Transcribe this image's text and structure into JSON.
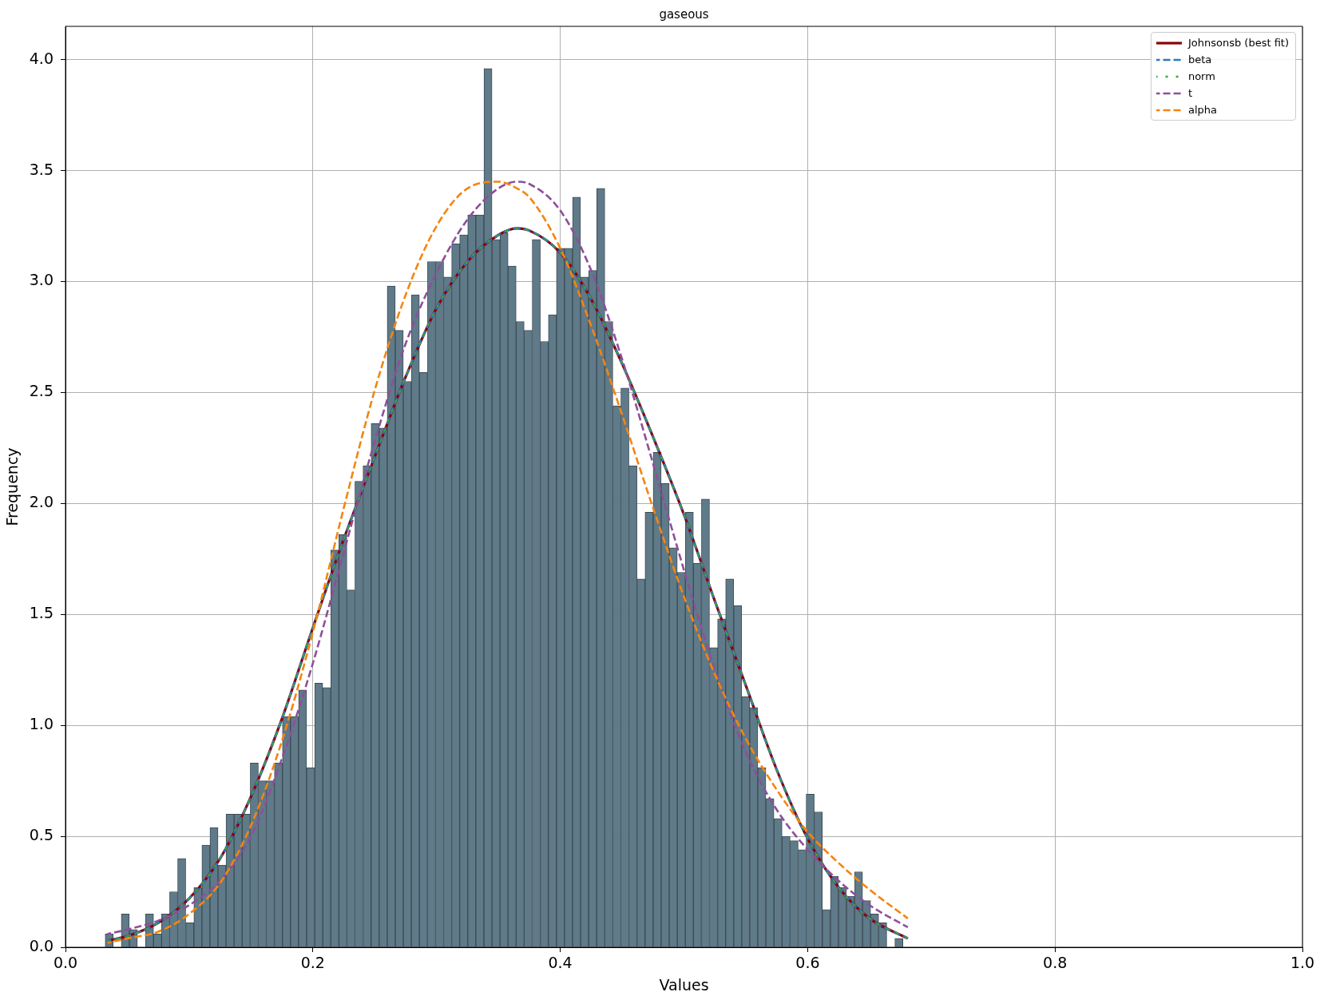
{
  "chart_data": {
    "type": "histogram",
    "title": "gaseous",
    "xlabel": "Values",
    "ylabel": "Frequency",
    "bins": [
      0.0321,
      0.0386,
      0.0451,
      0.0516,
      0.0582,
      0.0647,
      0.0712,
      0.0777,
      0.0842,
      0.0907,
      0.0972,
      0.1038,
      0.1103,
      0.1168,
      0.1233,
      0.1298,
      0.1363,
      0.1428,
      0.1494,
      0.1559,
      0.1624,
      0.1689,
      0.1754,
      0.1819,
      0.1884,
      0.195,
      0.2015,
      0.208,
      0.2145,
      0.221,
      0.2275,
      0.234,
      0.2405,
      0.2471,
      0.2536,
      0.2601,
      0.2666,
      0.2731,
      0.2796,
      0.2861,
      0.2927,
      0.2992,
      0.3057,
      0.3122,
      0.3187,
      0.3252,
      0.3317,
      0.3383,
      0.3448,
      0.3513,
      0.3578,
      0.3643,
      0.3708,
      0.3773,
      0.3839,
      0.3904,
      0.3969,
      0.4034,
      0.4099,
      0.4164,
      0.4229,
      0.4295,
      0.436,
      0.4425,
      0.449,
      0.4555,
      0.462,
      0.4685,
      0.4751,
      0.4816,
      0.4881,
      0.4946,
      0.5011,
      0.5076,
      0.5141,
      0.5207,
      0.5272,
      0.5337,
      0.5402,
      0.5467,
      0.5532,
      0.5597,
      0.5662,
      0.5728,
      0.5793,
      0.5858,
      0.5923,
      0.5988,
      0.6053,
      0.6118,
      0.6184,
      0.6249,
      0.6314,
      0.6379,
      0.6444,
      0.6509,
      0.6574,
      0.664,
      0.6705,
      0.677
    ],
    "values": [
      0.06,
      0,
      0.15,
      0.08,
      0,
      0.15,
      0.06,
      0.15,
      0.25,
      0.4,
      0.11,
      0.27,
      0.46,
      0.54,
      0.37,
      0.6,
      0.6,
      0.6,
      0.83,
      0.75,
      0.75,
      0.83,
      1.04,
      1.04,
      1.16,
      0.81,
      1.19,
      1.17,
      1.79,
      1.86,
      1.61,
      2.1,
      2.17,
      2.36,
      2.34,
      2.98,
      2.78,
      2.55,
      2.94,
      2.59,
      3.09,
      3.09,
      3.02,
      3.17,
      3.21,
      3.3,
      3.3,
      3.96,
      3.19,
      3.22,
      3.07,
      2.82,
      2.78,
      3.19,
      2.73,
      2.85,
      3.15,
      3.15,
      3.38,
      3.02,
      3.05,
      3.42,
      2.82,
      2.44,
      2.52,
      2.17,
      1.66,
      1.96,
      2.23,
      2.09,
      1.8,
      1.69,
      1.96,
      1.73,
      2.02,
      1.35,
      1.48,
      1.66,
      1.54,
      1.13,
      1.08,
      0.81,
      0.67,
      0.58,
      0.5,
      0.48,
      0.44,
      0.69,
      0.61,
      0.17,
      0.32,
      0.27,
      0.23,
      0.34,
      0.21,
      0.15,
      0.11,
      0,
      0.04
    ],
    "color": "#5f7a89",
    "series": [
      {
        "name": "Johnsonsb (best fit)",
        "type": "line",
        "color": "#8b0000",
        "line_style": "solid",
        "x": [
          0.034,
          0.05,
          0.075,
          0.1,
          0.125,
          0.15,
          0.175,
          0.2,
          0.225,
          0.25,
          0.275,
          0.3,
          0.325,
          0.35,
          0.365,
          0.375,
          0.4,
          0.425,
          0.45,
          0.475,
          0.5,
          0.525,
          0.55,
          0.575,
          0.6,
          0.625,
          0.65,
          0.681
        ],
        "values": [
          0.03,
          0.05,
          0.11,
          0.22,
          0.4,
          0.68,
          1.03,
          1.44,
          1.84,
          2.21,
          2.57,
          2.88,
          3.09,
          3.21,
          3.24,
          3.23,
          3.13,
          2.92,
          2.63,
          2.3,
          1.95,
          1.56,
          1.18,
          0.8,
          0.49,
          0.27,
          0.13,
          0.04
        ]
      },
      {
        "name": "beta",
        "type": "line",
        "color": "#2f7ab5",
        "line_style": "dashed",
        "x": [
          0.034,
          0.05,
          0.075,
          0.1,
          0.125,
          0.15,
          0.175,
          0.2,
          0.225,
          0.25,
          0.275,
          0.3,
          0.325,
          0.35,
          0.365,
          0.375,
          0.4,
          0.425,
          0.45,
          0.475,
          0.5,
          0.525,
          0.55,
          0.575,
          0.6,
          0.625,
          0.65,
          0.681
        ],
        "values": [
          0.03,
          0.05,
          0.11,
          0.22,
          0.4,
          0.68,
          1.03,
          1.44,
          1.84,
          2.21,
          2.57,
          2.88,
          3.09,
          3.21,
          3.24,
          3.23,
          3.13,
          2.92,
          2.63,
          2.3,
          1.95,
          1.56,
          1.18,
          0.8,
          0.49,
          0.27,
          0.13,
          0.04
        ]
      },
      {
        "name": "norm",
        "type": "line",
        "color": "#3aa53a",
        "line_style": "dashed",
        "x": [
          0.034,
          0.05,
          0.075,
          0.1,
          0.125,
          0.15,
          0.175,
          0.2,
          0.225,
          0.25,
          0.275,
          0.3,
          0.325,
          0.35,
          0.365,
          0.375,
          0.4,
          0.425,
          0.45,
          0.475,
          0.5,
          0.525,
          0.55,
          0.575,
          0.6,
          0.625,
          0.65,
          0.681
        ],
        "values": [
          0.03,
          0.05,
          0.11,
          0.22,
          0.4,
          0.68,
          1.03,
          1.44,
          1.84,
          2.21,
          2.57,
          2.88,
          3.09,
          3.21,
          3.24,
          3.23,
          3.13,
          2.92,
          2.63,
          2.3,
          1.95,
          1.56,
          1.18,
          0.8,
          0.49,
          0.27,
          0.13,
          0.04
        ]
      },
      {
        "name": "t",
        "type": "line",
        "color": "#8e4f9a",
        "line_style": "dashed",
        "x": [
          0.034,
          0.05,
          0.075,
          0.1,
          0.125,
          0.15,
          0.175,
          0.2,
          0.225,
          0.25,
          0.275,
          0.3,
          0.325,
          0.35,
          0.365,
          0.375,
          0.4,
          0.425,
          0.45,
          0.475,
          0.5,
          0.525,
          0.55,
          0.575,
          0.6,
          0.625,
          0.65,
          0.681
        ],
        "values": [
          0.06,
          0.08,
          0.12,
          0.19,
          0.3,
          0.5,
          0.85,
          1.28,
          1.78,
          2.28,
          2.72,
          3.04,
          3.28,
          3.42,
          3.45,
          3.44,
          3.32,
          3.05,
          2.65,
          2.18,
          1.7,
          1.25,
          0.88,
          0.62,
          0.44,
          0.3,
          0.19,
          0.09
        ]
      },
      {
        "name": "alpha",
        "type": "line",
        "color": "#f5850f",
        "line_style": "dashed",
        "x": [
          0.034,
          0.05,
          0.075,
          0.1,
          0.125,
          0.15,
          0.175,
          0.2,
          0.225,
          0.25,
          0.275,
          0.3,
          0.325,
          0.35,
          0.365,
          0.375,
          0.4,
          0.425,
          0.45,
          0.475,
          0.5,
          0.525,
          0.55,
          0.575,
          0.6,
          0.625,
          0.65,
          0.681
        ],
        "values": [
          0.02,
          0.04,
          0.07,
          0.15,
          0.29,
          0.55,
          0.93,
          1.42,
          1.98,
          2.51,
          2.94,
          3.25,
          3.42,
          3.45,
          3.42,
          3.38,
          3.15,
          2.8,
          2.4,
          1.98,
          1.58,
          1.23,
          0.94,
          0.71,
          0.52,
          0.38,
          0.26,
          0.13
        ]
      }
    ],
    "xlim": [
      0,
      1
    ],
    "xticks": [
      {
        "value": 0,
        "label": "0.0"
      },
      0.2,
      0.4,
      0.6,
      0.8,
      {
        "value": 1,
        "label": "1.0"
      }
    ],
    "ylim": [
      0,
      4.15
    ],
    "yticks": [
      {
        "value": 0,
        "label": "0.0"
      },
      0.5,
      {
        "value": 1,
        "label": "1.0"
      },
      1.5,
      {
        "value": 2,
        "label": "2.0"
      },
      2.5,
      {
        "value": 3,
        "label": "3.0"
      },
      3.5,
      {
        "value": 4,
        "label": "4.0"
      }
    ],
    "grid": true,
    "legend": "top right"
  }
}
